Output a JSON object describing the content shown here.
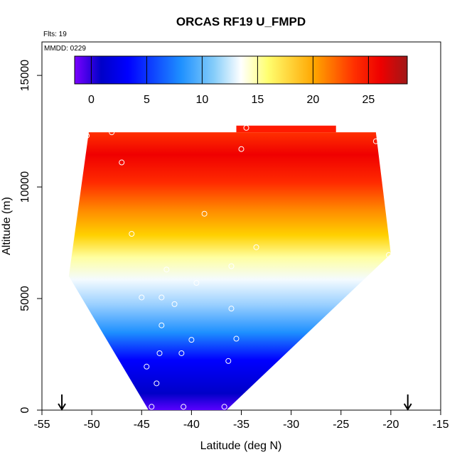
{
  "chart_data": {
    "type": "heatmap",
    "title": "ORCAS RF19 U_FMPD",
    "xlabel": "Latitude (deg N)",
    "ylabel": "Altitude (m)",
    "xlim": [
      -55,
      -15
    ],
    "ylim": [
      0,
      16500
    ],
    "x_ticks": [
      "-55",
      "-50",
      "-45",
      "-40",
      "-35",
      "-30",
      "-25",
      "-20",
      "-15"
    ],
    "y_ticks": [
      "0",
      "5000",
      "10000",
      "15000"
    ],
    "annotations": {
      "flights": "Flts: 19",
      "mmdd": "MMDD: 0229"
    },
    "colorbar": {
      "range": [
        -1.5,
        28.5
      ],
      "ticks": [
        "0",
        "5",
        "10",
        "15",
        "20",
        "25"
      ],
      "colors": [
        "#6a00ff",
        "#0000cc",
        "#0000ff",
        "#1e90ff",
        "#87cefa",
        "#ffffff",
        "#ffff66",
        "#ffa500",
        "#ff4500",
        "#ff0000",
        "#b22222"
      ]
    },
    "domain": {
      "top_left": [
        -50.3,
        12450
      ],
      "top_right": [
        -21.5,
        12450
      ],
      "mid_left": [
        -52.3,
        6000
      ],
      "mid_right": [
        -20.0,
        7000
      ],
      "bottom_left": [
        -44.3,
        0
      ],
      "bottom_right": [
        -36.5,
        0
      ]
    },
    "wind_profile": [
      {
        "altitude": 0,
        "value": 0
      },
      {
        "altitude": 1500,
        "value": 3
      },
      {
        "altitude": 3000,
        "value": 6
      },
      {
        "altitude": 4500,
        "value": 10
      },
      {
        "altitude": 6000,
        "value": 14
      },
      {
        "altitude": 7500,
        "value": 17
      },
      {
        "altitude": 9000,
        "value": 22
      },
      {
        "altitude": 10500,
        "value": 25
      },
      {
        "altitude": 12000,
        "value": 25
      }
    ],
    "sample_points": [
      {
        "x": -50.5,
        "y": 12300
      },
      {
        "x": -48.0,
        "y": 12450
      },
      {
        "x": -47.0,
        "y": 11100
      },
      {
        "x": -35.0,
        "y": 11700
      },
      {
        "x": -34.5,
        "y": 12650
      },
      {
        "x": -21.5,
        "y": 12050
      },
      {
        "x": -38.7,
        "y": 8800
      },
      {
        "x": -46.0,
        "y": 7900
      },
      {
        "x": -33.5,
        "y": 7300
      },
      {
        "x": -42.5,
        "y": 6300
      },
      {
        "x": -36.0,
        "y": 6450
      },
      {
        "x": -39.5,
        "y": 5700
      },
      {
        "x": -45.0,
        "y": 5050
      },
      {
        "x": -43.0,
        "y": 5050
      },
      {
        "x": -41.7,
        "y": 4750
      },
      {
        "x": -36.0,
        "y": 4550
      },
      {
        "x": -43.0,
        "y": 3800
      },
      {
        "x": -40.0,
        "y": 3150
      },
      {
        "x": -35.5,
        "y": 3200
      },
      {
        "x": -43.2,
        "y": 2550
      },
      {
        "x": -41.0,
        "y": 2550
      },
      {
        "x": -36.3,
        "y": 2200
      },
      {
        "x": -44.5,
        "y": 1950
      },
      {
        "x": -43.5,
        "y": 1200
      },
      {
        "x": -44.0,
        "y": 150
      },
      {
        "x": -40.8,
        "y": 150
      },
      {
        "x": -36.7,
        "y": 150
      },
      {
        "x": -20.2,
        "y": 6950
      }
    ],
    "markers": [
      {
        "x": -53,
        "y": 0,
        "label": "arrow"
      },
      {
        "x": -18.3,
        "y": 0,
        "label": "arrow"
      }
    ],
    "grid": false,
    "legend": "top (colorbar)"
  }
}
